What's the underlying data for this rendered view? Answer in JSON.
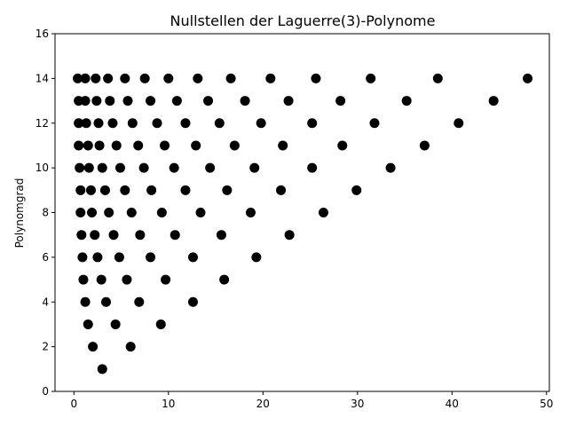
{
  "chart_data": {
    "type": "scatter",
    "title": "Nullstellen der Laguerre(3)-Polynome",
    "xlabel": "",
    "ylabel": "Polynomgrad",
    "xlim": [
      -2,
      50.3
    ],
    "ylim": [
      0,
      16
    ],
    "xticks": [
      0,
      10,
      20,
      30,
      40,
      50
    ],
    "yticks": [
      0,
      2,
      4,
      6,
      8,
      10,
      12,
      14,
      16
    ],
    "grid": false,
    "marker_color": "#000000",
    "series": [
      {
        "points": [
          [
            3.0,
            1
          ],
          [
            2.0,
            2
          ],
          [
            6.0,
            2
          ],
          [
            1.5,
            3
          ],
          [
            4.4,
            3
          ],
          [
            9.2,
            3
          ],
          [
            1.2,
            4
          ],
          [
            3.4,
            4
          ],
          [
            6.9,
            4
          ],
          [
            12.6,
            4
          ],
          [
            1.0,
            5
          ],
          [
            2.9,
            5
          ],
          [
            5.6,
            5
          ],
          [
            9.7,
            5
          ],
          [
            15.9,
            5
          ],
          [
            0.9,
            6
          ],
          [
            2.5,
            6
          ],
          [
            4.8,
            6
          ],
          [
            8.1,
            6
          ],
          [
            12.6,
            6
          ],
          [
            19.3,
            6
          ],
          [
            0.8,
            7
          ],
          [
            2.2,
            7
          ],
          [
            4.2,
            7
          ],
          [
            7.0,
            7
          ],
          [
            10.7,
            7
          ],
          [
            15.6,
            7
          ],
          [
            22.8,
            7
          ],
          [
            0.7,
            8
          ],
          [
            1.9,
            8
          ],
          [
            3.7,
            8
          ],
          [
            6.1,
            8
          ],
          [
            9.3,
            8
          ],
          [
            13.4,
            8
          ],
          [
            18.7,
            8
          ],
          [
            26.4,
            8
          ],
          [
            0.7,
            9
          ],
          [
            1.8,
            9
          ],
          [
            3.3,
            9
          ],
          [
            5.4,
            9
          ],
          [
            8.2,
            9
          ],
          [
            11.8,
            9
          ],
          [
            16.2,
            9
          ],
          [
            21.9,
            9
          ],
          [
            29.9,
            9
          ],
          [
            0.6,
            10
          ],
          [
            1.6,
            10
          ],
          [
            3.0,
            10
          ],
          [
            4.9,
            10
          ],
          [
            7.4,
            10
          ],
          [
            10.6,
            10
          ],
          [
            14.4,
            10
          ],
          [
            19.1,
            10
          ],
          [
            25.2,
            10
          ],
          [
            33.5,
            10
          ],
          [
            0.5,
            11
          ],
          [
            1.5,
            11
          ],
          [
            2.7,
            11
          ],
          [
            4.5,
            11
          ],
          [
            6.8,
            11
          ],
          [
            9.6,
            11
          ],
          [
            12.9,
            11
          ],
          [
            17.0,
            11
          ],
          [
            22.1,
            11
          ],
          [
            28.4,
            11
          ],
          [
            37.1,
            11
          ],
          [
            0.5,
            12
          ],
          [
            1.3,
            12
          ],
          [
            2.6,
            12
          ],
          [
            4.1,
            12
          ],
          [
            6.2,
            12
          ],
          [
            8.8,
            12
          ],
          [
            11.8,
            12
          ],
          [
            15.4,
            12
          ],
          [
            19.8,
            12
          ],
          [
            25.2,
            12
          ],
          [
            31.8,
            12
          ],
          [
            40.7,
            12
          ],
          [
            0.5,
            13
          ],
          [
            1.2,
            13
          ],
          [
            2.4,
            13
          ],
          [
            3.8,
            13
          ],
          [
            5.7,
            13
          ],
          [
            8.1,
            13
          ],
          [
            10.9,
            13
          ],
          [
            14.2,
            13
          ],
          [
            18.1,
            13
          ],
          [
            22.7,
            13
          ],
          [
            28.2,
            13
          ],
          [
            35.2,
            13
          ],
          [
            44.4,
            13
          ],
          [
            0.4,
            14
          ],
          [
            1.2,
            14
          ],
          [
            2.3,
            14
          ],
          [
            3.6,
            14
          ],
          [
            5.4,
            14
          ],
          [
            7.5,
            14
          ],
          [
            10.0,
            14
          ],
          [
            13.1,
            14
          ],
          [
            16.6,
            14
          ],
          [
            20.8,
            14
          ],
          [
            25.6,
            14
          ],
          [
            31.4,
            14
          ],
          [
            38.5,
            14
          ],
          [
            48.0,
            14
          ]
        ]
      }
    ]
  }
}
